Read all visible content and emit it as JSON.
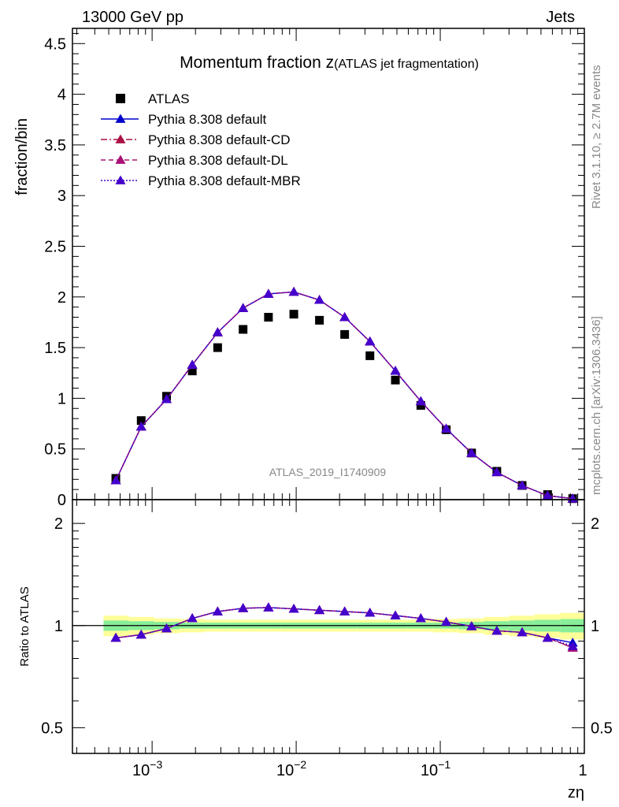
{
  "header": {
    "left": "13000 GeV pp",
    "right": "Jets"
  },
  "side_labels": {
    "rivet": "Rivet 3.1.10, ≥ 2.7M events",
    "mcplots": "mcplots.cern.ch [arXiv:1306.3436]"
  },
  "watermark": "ATLAS_2019_I1740909",
  "colors": {
    "atlas": "#000000",
    "default": "#0000cc",
    "cd": "#aa1144",
    "dl": "#aa1177",
    "mbr": "#4400cc",
    "band_inner": "#88ee99",
    "band_outer": "#ffff99"
  },
  "chart_data": [
    {
      "type": "scatter",
      "title_main": "Momentum fraction z",
      "title_sub": "(ATLAS jet fragmentation)",
      "ylabel": "fraction/bin",
      "xscale": "log",
      "xlim": [
        0.00028,
        1.0
      ],
      "ylim": [
        0,
        4.65
      ],
      "yticks": [
        {
          "v": 0,
          "label": "0"
        },
        {
          "v": 0.5,
          "label": "0.5"
        },
        {
          "v": 1,
          "label": "1"
        },
        {
          "v": 1.5,
          "label": "1.5"
        },
        {
          "v": 2,
          "label": "2"
        },
        {
          "v": 2.5,
          "label": "2.5"
        },
        {
          "v": 3,
          "label": "3"
        },
        {
          "v": 3.5,
          "label": "3.5"
        },
        {
          "v": 4,
          "label": "4"
        },
        {
          "v": 4.5,
          "label": "4.5"
        }
      ],
      "legend_position": "top-left",
      "x": [
        0.00056,
        0.00084,
        0.00126,
        0.0019,
        0.00285,
        0.00428,
        0.00642,
        0.00963,
        0.0145,
        0.0217,
        0.0325,
        0.0488,
        0.0733,
        0.11,
        0.165,
        0.247,
        0.37,
        0.556,
        0.83
      ],
      "series": [
        {
          "name": "ATLAS",
          "key": "atlas",
          "style": "square",
          "values": [
            0.21,
            0.78,
            1.02,
            1.27,
            1.5,
            1.68,
            1.8,
            1.83,
            1.77,
            1.63,
            1.42,
            1.18,
            0.93,
            0.69,
            0.46,
            0.28,
            0.14,
            0.05,
            0.01
          ]
        },
        {
          "name": "Pythia 8.308 default",
          "key": "default",
          "style": "solid",
          "values": [
            0.19,
            0.72,
            0.99,
            1.33,
            1.65,
            1.89,
            2.03,
            2.05,
            1.97,
            1.8,
            1.56,
            1.27,
            0.97,
            0.7,
            0.46,
            0.27,
            0.14,
            0.04,
            0.01
          ]
        },
        {
          "name": "Pythia 8.308 default-CD",
          "key": "cd",
          "style": "dashdot",
          "values": [
            0.19,
            0.72,
            0.99,
            1.33,
            1.65,
            1.89,
            2.03,
            2.05,
            1.97,
            1.8,
            1.56,
            1.27,
            0.97,
            0.7,
            0.46,
            0.27,
            0.14,
            0.04,
            0.01
          ]
        },
        {
          "name": "Pythia 8.308 default-DL",
          "key": "dl",
          "style": "dashed",
          "values": [
            0.19,
            0.72,
            0.99,
            1.33,
            1.65,
            1.89,
            2.03,
            2.05,
            1.97,
            1.8,
            1.56,
            1.27,
            0.97,
            0.7,
            0.46,
            0.27,
            0.14,
            0.04,
            0.01
          ]
        },
        {
          "name": "Pythia 8.308 default-MBR",
          "key": "mbr",
          "style": "dotted",
          "values": [
            0.19,
            0.72,
            0.99,
            1.33,
            1.65,
            1.89,
            2.03,
            2.05,
            1.97,
            1.8,
            1.56,
            1.27,
            0.97,
            0.7,
            0.46,
            0.27,
            0.14,
            0.04,
            0.01
          ]
        }
      ]
    },
    {
      "type": "line",
      "ylabel": "Ratio to ATLAS",
      "xlabel": "zη",
      "xscale": "log",
      "yscale": "log",
      "xlim": [
        0.00028,
        1.0
      ],
      "ylim": [
        0.42,
        2.35
      ],
      "xticks": [
        {
          "v": 0.001,
          "base": "10",
          "exp": "−3"
        },
        {
          "v": 0.01,
          "base": "10",
          "exp": "−2"
        },
        {
          "v": 0.1,
          "base": "10",
          "exp": "−1"
        },
        {
          "v": 1,
          "base": "1",
          "exp": ""
        }
      ],
      "yticks": [
        {
          "v": 0.5,
          "label": "0.5"
        },
        {
          "v": 1,
          "label": "1"
        },
        {
          "v": 2,
          "label": "2"
        }
      ],
      "band_edges": [
        0.00046,
        0.00069,
        0.00103,
        0.00155,
        0.00232,
        0.00348,
        0.00522,
        0.00783,
        0.0117,
        0.0176,
        0.0264,
        0.0396,
        0.0594,
        0.0891,
        0.134,
        0.2,
        0.3,
        0.45,
        0.68,
        1.0
      ],
      "band_inner": [
        0.035,
        0.03,
        0.025,
        0.02,
        0.02,
        0.02,
        0.02,
        0.02,
        0.02,
        0.02,
        0.02,
        0.02,
        0.02,
        0.02,
        0.025,
        0.03,
        0.035,
        0.04,
        0.045
      ],
      "band_outer": [
        0.07,
        0.06,
        0.05,
        0.045,
        0.04,
        0.04,
        0.04,
        0.04,
        0.04,
        0.04,
        0.04,
        0.04,
        0.04,
        0.045,
        0.05,
        0.06,
        0.07,
        0.08,
        0.09
      ],
      "series": [
        {
          "name": "Pythia 8.308 default",
          "key": "default",
          "style": "solid",
          "values": [
            0.92,
            0.94,
            0.98,
            1.05,
            1.1,
            1.125,
            1.13,
            1.12,
            1.11,
            1.1,
            1.09,
            1.07,
            1.05,
            1.025,
            0.995,
            0.965,
            0.955,
            0.92,
            0.89
          ]
        },
        {
          "name": "Pythia 8.308 default-CD",
          "key": "cd",
          "style": "dashdot",
          "values": [
            0.92,
            0.94,
            0.98,
            1.05,
            1.1,
            1.125,
            1.13,
            1.12,
            1.11,
            1.1,
            1.09,
            1.07,
            1.05,
            1.025,
            0.995,
            0.965,
            0.955,
            0.92,
            0.86
          ]
        },
        {
          "name": "Pythia 8.308 default-DL",
          "key": "dl",
          "style": "dashed",
          "values": [
            0.92,
            0.94,
            0.98,
            1.05,
            1.1,
            1.125,
            1.13,
            1.12,
            1.11,
            1.1,
            1.09,
            1.07,
            1.05,
            1.025,
            0.995,
            0.965,
            0.955,
            0.92,
            0.86
          ]
        },
        {
          "name": "Pythia 8.308 default-MBR",
          "key": "mbr",
          "style": "dotted",
          "values": [
            0.92,
            0.94,
            0.98,
            1.05,
            1.1,
            1.125,
            1.13,
            1.12,
            1.11,
            1.1,
            1.09,
            1.07,
            1.05,
            1.025,
            0.995,
            0.965,
            0.955,
            0.92,
            0.87
          ]
        }
      ]
    }
  ]
}
